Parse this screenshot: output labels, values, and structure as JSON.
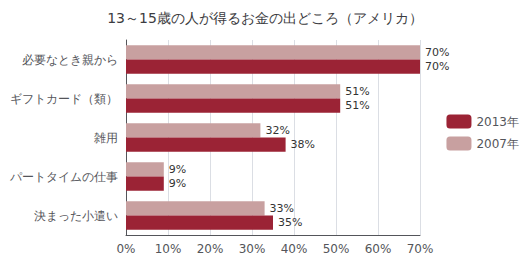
{
  "chart_data": {
    "type": "bar",
    "orientation": "horizontal",
    "title": "13～15歳の人が得るお金の出どころ（アメリカ）",
    "categories": [
      "決まった小遣い",
      "パートタイムの仕事",
      "雑用",
      "ギフトカード（類）",
      "必要なとき親から"
    ],
    "series": [
      {
        "name": "2013年",
        "color": "#9B2335",
        "values": [
          35,
          9,
          38,
          51,
          70
        ],
        "value_labels": [
          "35%",
          "9%",
          "38%",
          "51%",
          "70%"
        ]
      },
      {
        "name": "2007年",
        "color": "#C8A0A0",
        "values": [
          33,
          9,
          32,
          51,
          70
        ],
        "value_labels": [
          "33%",
          "9%",
          "32%",
          "51%",
          "70%"
        ]
      }
    ],
    "xlim": [
      0,
      70
    ],
    "xticks": [
      {
        "value": 0,
        "label": "0%"
      },
      {
        "value": 10,
        "label": "10%"
      },
      {
        "value": 20,
        "label": "20%"
      },
      {
        "value": 30,
        "label": "30%"
      },
      {
        "value": 40,
        "label": "40%"
      },
      {
        "value": 50,
        "label": "50%"
      },
      {
        "value": 60,
        "label": "60%"
      },
      {
        "value": 70,
        "label": "70%"
      }
    ],
    "grid": true,
    "legend": "right",
    "data_labels": true
  }
}
